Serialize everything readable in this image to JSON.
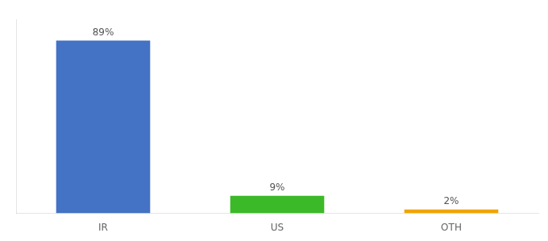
{
  "chart_data": {
    "type": "bar",
    "categories": [
      "IR",
      "US",
      "OTH"
    ],
    "values": [
      89,
      9,
      2
    ],
    "value_labels": [
      "89%",
      "9%",
      "2%"
    ],
    "data_labels": true,
    "colors": [
      "#4472c4",
      "#3cb928",
      "#f0a500"
    ],
    "ylim": [
      0,
      100
    ],
    "grid": false,
    "tick_labels": "x"
  }
}
